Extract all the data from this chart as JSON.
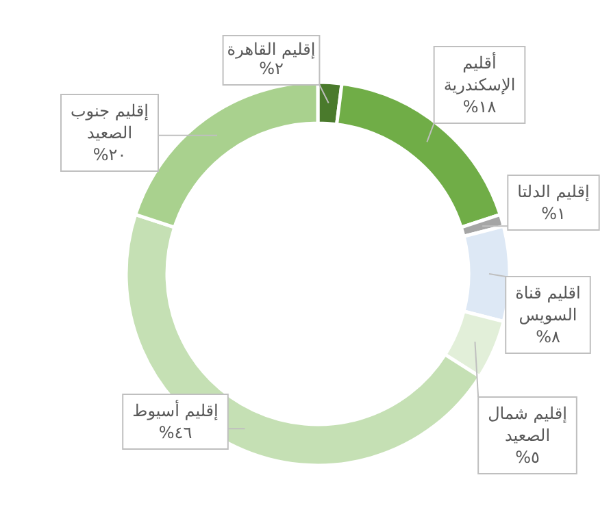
{
  "chart_data": {
    "type": "donut",
    "categories": [
      "إقليم القاهرة",
      "أقليم الإسكندرية",
      "إقليم الدلتا",
      "اقليم قناة السويس",
      "إقليم شمال الصعيد",
      "إقليم أسيوط",
      "إقليم جنوب الصعيد"
    ],
    "values": [
      2,
      18,
      1,
      8,
      5,
      46,
      20
    ],
    "value_labels": [
      "٢%",
      "١٨%",
      "١%",
      "٨%",
      "٥%",
      "٤٦%",
      "٢٠%"
    ],
    "colors": [
      "#4a7a2c",
      "#70ad47",
      "#a5a5a5",
      "#dde8f5",
      "#e2efd9",
      "#c5e0b4",
      "#a9d18e"
    ],
    "legend": false
  }
}
